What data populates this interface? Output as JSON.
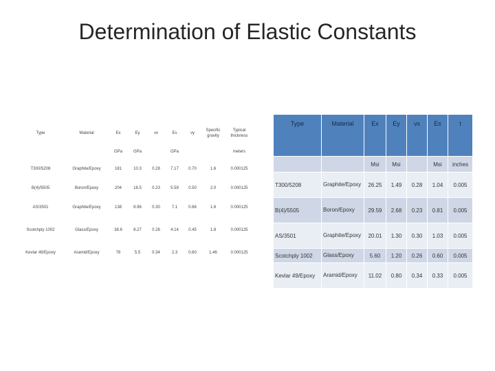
{
  "slide": {
    "title": "Determination of Elastic Constants"
  },
  "si_table": {
    "headers": [
      "Type",
      "Material",
      "Ex",
      "Ey",
      "νx",
      "Es",
      "νy",
      "Specific gravity",
      "Typical thickness"
    ],
    "units": [
      "",
      "",
      "GPa",
      "GPa",
      "",
      "GPa",
      "",
      "",
      "meters"
    ],
    "rows": [
      [
        "T300/5208",
        "Graphite/Epoxy",
        "181",
        "10.3",
        "0.28",
        "7.17",
        "0.70",
        "1.6",
        "0.000125"
      ],
      [
        "B(4)/5505",
        "Boron/Epoxy",
        "204",
        "18.5",
        "0.23",
        "5.59",
        "0.50",
        "2.0",
        "0.000125"
      ],
      [
        "AS/3501",
        "Graphite/Epoxy",
        "138",
        "8.96",
        "0.30",
        "7.1",
        "0.66",
        "1.6",
        "0.000125"
      ],
      [
        "Scotchply 1002",
        "Glass/Epoxy",
        "38.6",
        "8.27",
        "0.26",
        "4.14",
        "0.45",
        "1.8",
        "0.000125"
      ],
      [
        "Kevlar 49/Epoxy",
        "Aramid/Epoxy",
        "76",
        "5.5",
        "0.34",
        "2.3",
        "0.60",
        "1.46",
        "0.000125"
      ]
    ]
  },
  "us_table": {
    "headers": [
      "Type",
      "Material",
      "Ex",
      "Ey",
      "νx",
      "Es",
      "t"
    ],
    "units": [
      "",
      "",
      "Msi",
      "Msi",
      "",
      "Msi",
      "inches"
    ],
    "rows": [
      [
        "T300/5208",
        "Graphite/Epoxy",
        "26.25",
        "1.49",
        "0.28",
        "1.04",
        "0.005"
      ],
      [
        "B(4)/5505",
        "Boron/Epoxy",
        "29.59",
        "2.68",
        "0.23",
        "0.81",
        "0.005"
      ],
      [
        "AS/3501",
        "Graphite/Epoxy",
        "20.01",
        "1.30",
        "0.30",
        "1.03",
        "0.005"
      ],
      [
        "Scotchply 1002",
        "Glass/Epoxy",
        "5.60",
        "1.20",
        "0.26",
        "0.60",
        "0.005"
      ],
      [
        "Kevlar 49/Epoxy",
        "Aramid/Epoxy",
        "11.02",
        "0.80",
        "0.34",
        "0.33",
        "0.005"
      ]
    ]
  },
  "colors": {
    "header_fill": "#4f81bd",
    "band_dark": "#cfd7e6",
    "band_light": "#e9edf4"
  }
}
